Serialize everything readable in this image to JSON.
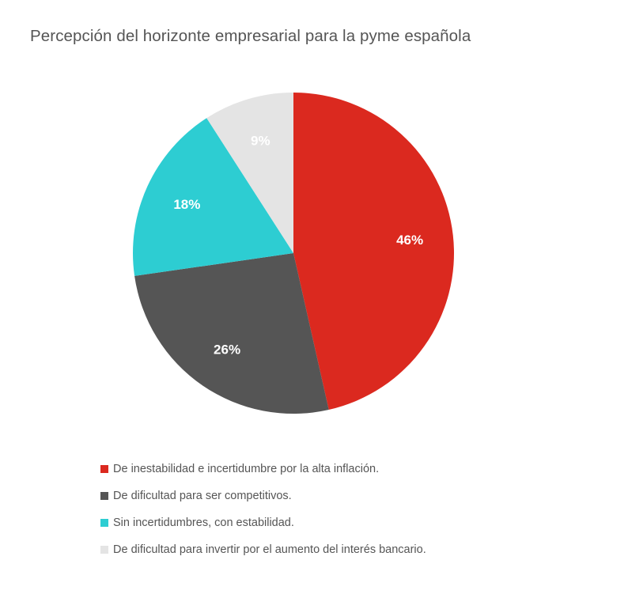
{
  "chart_data": {
    "type": "pie",
    "title": "Percepción del horizonte empresarial para la pyme española",
    "slices": [
      {
        "label": "De inestabilidad e incertidumbre por la alta inflación.",
        "value": 46,
        "display": "46%",
        "color": "#db291f"
      },
      {
        "label": "De dificultad para ser competitivos.",
        "value": 26,
        "display": "26%",
        "color": "#555555"
      },
      {
        "label": "Sin incertidumbres, con estabilidad.",
        "value": 18,
        "display": "18%",
        "color": "#2dcdd2"
      },
      {
        "label": "De dificultad para invertir por el aumento del interés bancario.",
        "value": 9,
        "display": "9%",
        "color": "#e4e4e4"
      }
    ],
    "start_angle": "12 o'clock",
    "direction": "clockwise",
    "legend_position": "bottom"
  }
}
